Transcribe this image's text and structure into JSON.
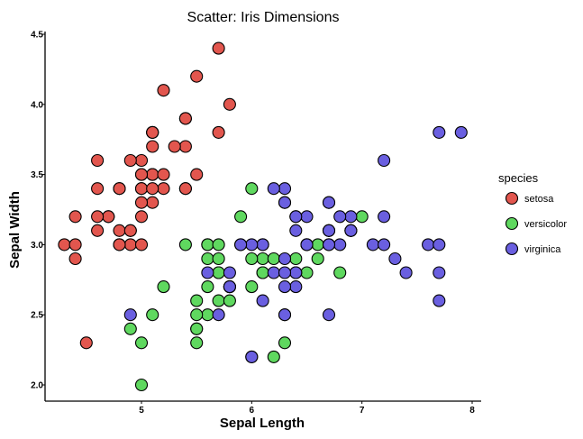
{
  "chart_data": {
    "type": "scatter",
    "title": "Scatter: Iris Dimensions",
    "xlabel": "Sepal Length",
    "ylabel": "Sepal Width",
    "xlim": [
      4.2,
      8.1
    ],
    "ylim": [
      1.92,
      4.52
    ],
    "xticks": [
      5,
      6,
      7,
      8
    ],
    "yticks": [
      2.0,
      2.5,
      3.0,
      3.5,
      4.0,
      4.5
    ],
    "legend": {
      "title": "species",
      "placement": "right"
    },
    "series": [
      {
        "name": "setosa",
        "color": "#e2564e",
        "points": [
          [
            5.1,
            3.5
          ],
          [
            4.9,
            3.0
          ],
          [
            4.7,
            3.2
          ],
          [
            4.6,
            3.1
          ],
          [
            5.0,
            3.6
          ],
          [
            5.4,
            3.9
          ],
          [
            4.6,
            3.4
          ],
          [
            5.0,
            3.4
          ],
          [
            4.4,
            2.9
          ],
          [
            4.9,
            3.1
          ],
          [
            5.4,
            3.7
          ],
          [
            4.8,
            3.4
          ],
          [
            4.8,
            3.0
          ],
          [
            4.3,
            3.0
          ],
          [
            5.8,
            4.0
          ],
          [
            5.7,
            4.4
          ],
          [
            5.4,
            3.9
          ],
          [
            5.1,
            3.5
          ],
          [
            5.7,
            3.8
          ],
          [
            5.1,
            3.8
          ],
          [
            5.4,
            3.4
          ],
          [
            5.1,
            3.7
          ],
          [
            4.6,
            3.6
          ],
          [
            5.1,
            3.3
          ],
          [
            4.8,
            3.4
          ],
          [
            5.0,
            3.0
          ],
          [
            5.0,
            3.4
          ],
          [
            5.2,
            3.5
          ],
          [
            5.2,
            3.4
          ],
          [
            4.7,
            3.2
          ],
          [
            4.8,
            3.1
          ],
          [
            5.4,
            3.4
          ],
          [
            5.2,
            4.1
          ],
          [
            5.5,
            4.2
          ],
          [
            4.9,
            3.1
          ],
          [
            5.0,
            3.2
          ],
          [
            5.5,
            3.5
          ],
          [
            4.9,
            3.6
          ],
          [
            4.4,
            3.0
          ],
          [
            5.1,
            3.4
          ],
          [
            5.0,
            3.5
          ],
          [
            4.5,
            2.3
          ],
          [
            4.4,
            3.2
          ],
          [
            5.0,
            3.5
          ],
          [
            5.1,
            3.8
          ],
          [
            4.8,
            3.0
          ],
          [
            5.1,
            3.8
          ],
          [
            4.6,
            3.2
          ],
          [
            5.3,
            3.7
          ],
          [
            5.0,
            3.3
          ]
        ]
      },
      {
        "name": "versicolor",
        "color": "#5fd85f",
        "points": [
          [
            7.0,
            3.2
          ],
          [
            6.4,
            3.2
          ],
          [
            6.9,
            3.1
          ],
          [
            5.5,
            2.3
          ],
          [
            6.5,
            2.8
          ],
          [
            5.7,
            2.8
          ],
          [
            6.3,
            3.3
          ],
          [
            4.9,
            2.4
          ],
          [
            6.6,
            2.9
          ],
          [
            5.2,
            2.7
          ],
          [
            5.0,
            2.0
          ],
          [
            5.9,
            3.0
          ],
          [
            6.0,
            2.2
          ],
          [
            6.1,
            2.9
          ],
          [
            5.6,
            2.9
          ],
          [
            6.7,
            3.1
          ],
          [
            5.6,
            3.0
          ],
          [
            5.8,
            2.7
          ],
          [
            6.2,
            2.2
          ],
          [
            5.6,
            2.5
          ],
          [
            5.9,
            3.2
          ],
          [
            6.1,
            2.8
          ],
          [
            6.3,
            2.5
          ],
          [
            6.1,
            2.8
          ],
          [
            6.4,
            2.9
          ],
          [
            6.6,
            3.0
          ],
          [
            6.8,
            2.8
          ],
          [
            6.7,
            3.0
          ],
          [
            6.0,
            2.9
          ],
          [
            5.7,
            2.6
          ],
          [
            5.5,
            2.4
          ],
          [
            5.5,
            2.4
          ],
          [
            5.8,
            2.7
          ],
          [
            6.0,
            2.7
          ],
          [
            5.4,
            3.0
          ],
          [
            6.0,
            3.4
          ],
          [
            6.7,
            3.1
          ],
          [
            6.3,
            2.3
          ],
          [
            5.6,
            3.0
          ],
          [
            5.5,
            2.5
          ],
          [
            5.5,
            2.6
          ],
          [
            6.1,
            3.0
          ],
          [
            5.8,
            2.6
          ],
          [
            5.0,
            2.3
          ],
          [
            5.6,
            2.7
          ],
          [
            5.7,
            3.0
          ],
          [
            5.7,
            2.9
          ],
          [
            6.2,
            2.9
          ],
          [
            5.1,
            2.5
          ],
          [
            5.7,
            2.8
          ]
        ]
      },
      {
        "name": "virginica",
        "color": "#6a5fe0",
        "points": [
          [
            6.3,
            3.3
          ],
          [
            5.8,
            2.7
          ],
          [
            7.1,
            3.0
          ],
          [
            6.3,
            2.9
          ],
          [
            6.5,
            3.0
          ],
          [
            7.6,
            3.0
          ],
          [
            4.9,
            2.5
          ],
          [
            7.3,
            2.9
          ],
          [
            6.7,
            2.5
          ],
          [
            7.2,
            3.6
          ],
          [
            6.5,
            3.2
          ],
          [
            6.4,
            2.7
          ],
          [
            6.8,
            3.0
          ],
          [
            5.7,
            2.5
          ],
          [
            5.8,
            2.8
          ],
          [
            6.4,
            3.2
          ],
          [
            6.5,
            3.0
          ],
          [
            7.7,
            3.8
          ],
          [
            7.7,
            2.6
          ],
          [
            6.0,
            2.2
          ],
          [
            6.9,
            3.2
          ],
          [
            5.6,
            2.8
          ],
          [
            7.7,
            2.8
          ],
          [
            6.3,
            2.7
          ],
          [
            6.7,
            3.3
          ],
          [
            7.2,
            3.2
          ],
          [
            6.2,
            2.8
          ],
          [
            6.1,
            3.0
          ],
          [
            6.4,
            2.8
          ],
          [
            7.2,
            3.0
          ],
          [
            7.4,
            2.8
          ],
          [
            7.9,
            3.8
          ],
          [
            6.4,
            2.8
          ],
          [
            6.3,
            2.8
          ],
          [
            6.1,
            2.6
          ],
          [
            7.7,
            3.0
          ],
          [
            6.3,
            3.4
          ],
          [
            6.4,
            3.1
          ],
          [
            6.0,
            3.0
          ],
          [
            6.9,
            3.1
          ],
          [
            6.7,
            3.1
          ],
          [
            6.9,
            3.1
          ],
          [
            5.8,
            2.7
          ],
          [
            6.8,
            3.2
          ],
          [
            6.7,
            3.3
          ],
          [
            6.7,
            3.0
          ],
          [
            6.3,
            2.5
          ],
          [
            6.5,
            3.0
          ],
          [
            6.2,
            3.4
          ],
          [
            5.9,
            3.0
          ]
        ]
      }
    ]
  }
}
